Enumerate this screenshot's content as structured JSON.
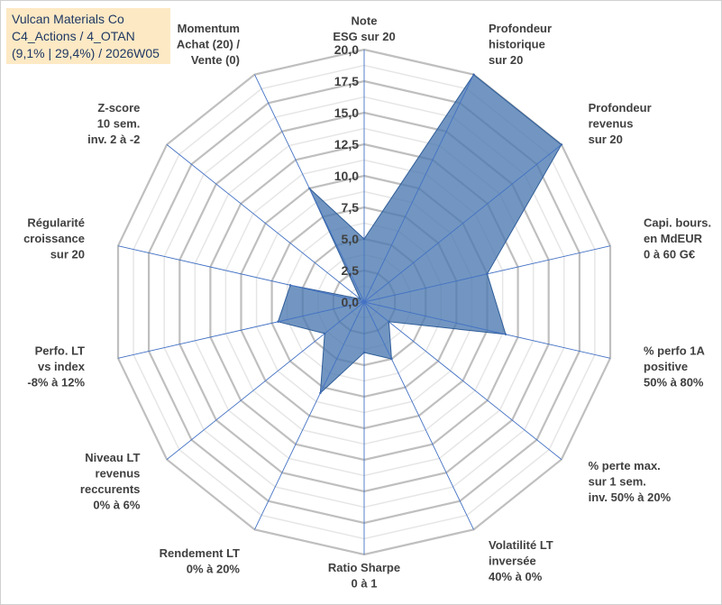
{
  "chart_data": {
    "type": "radar",
    "title_lines": [
      "Vulcan Materials Co",
      "C4_Actions / 4_OTAN",
      "(9,1% | 29,4%) / 2026W05"
    ],
    "axes": [
      [
        "Note",
        "ESG sur 20"
      ],
      [
        "Profondeur",
        "historique",
        "sur 20"
      ],
      [
        "Profondeur",
        "revenus",
        "sur 20"
      ],
      [
        "Capi. bours.",
        "en MdEUR",
        "0 à 60 G€"
      ],
      [
        "% perfo 1A",
        "positive",
        "50% à 80%"
      ],
      [
        "% perte max.",
        "sur 1 sem.",
        "inv. 50% à 20%"
      ],
      [
        "Volatilité LT",
        "inversée",
        "40% à 0%"
      ],
      [
        "Ratio Sharpe",
        "0 à 1"
      ],
      [
        "Rendement LT",
        "0% à 20%"
      ],
      [
        "Niveau LT",
        "revenus",
        "reccurents",
        "0% à 6%"
      ],
      [
        "Perfo. LT",
        "vs index",
        "-8% à 12%"
      ],
      [
        "Régularité",
        "croissance",
        "sur 20"
      ],
      [
        "Z-score",
        "10 sem.",
        "inv. 2 à -2"
      ],
      [
        "Momentum",
        "Achat (20) /",
        "Vente (0)"
      ]
    ],
    "values": [
      5.0,
      20.0,
      20.0,
      10.0,
      11.5,
      2.5,
      5.0,
      4.0,
      8.0,
      4.0,
      7.0,
      6.0,
      0.4,
      10.0
    ],
    "r_min": 0,
    "r_max": 20,
    "ticks": [
      0,
      2.5,
      5,
      7.5,
      10,
      12.5,
      15,
      17.5,
      20
    ],
    "tick_labels": [
      "0,0",
      "2,5",
      "5,0",
      "7,5",
      "10,0",
      "12,5",
      "15,0",
      "17,5",
      "20,0"
    ],
    "minor_step": 1.25,
    "series_name": "Vulcan Materials Co",
    "fill_color": "#4a78b0",
    "line_color": "#2f5d99",
    "grid_color": "#bfbfbf",
    "axis_color": "#4472c4"
  }
}
